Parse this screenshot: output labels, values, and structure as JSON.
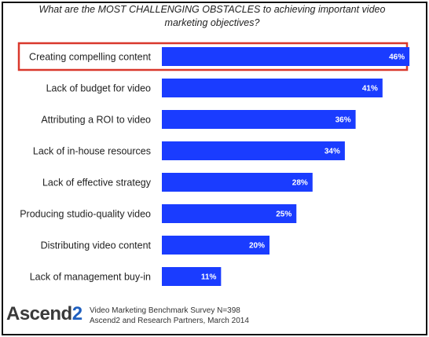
{
  "title": "What are the MOST CHALLENGING OBSTACLES to achieving important video marketing objectives?",
  "colors": {
    "bar": "#1a3cff",
    "highlight": "#d9382c",
    "text": "#222222"
  },
  "chart_data": {
    "type": "bar",
    "orientation": "horizontal",
    "title": "What are the MOST CHALLENGING OBSTACLES to achieving important video marketing objectives?",
    "categories": [
      "Creating compelling content",
      "Lack of budget for video",
      "Attributing a ROI to video",
      "Lack of in-house resources",
      "Lack of effective strategy",
      "Producing studio-quality video",
      "Distributing video content",
      "Lack of management buy-in"
    ],
    "values": [
      46,
      41,
      36,
      34,
      28,
      25,
      20,
      11
    ],
    "value_labels": [
      "46%",
      "41%",
      "36%",
      "34%",
      "28%",
      "25%",
      "20%",
      "11%"
    ],
    "highlighted_category": "Creating compelling content",
    "xlim": [
      0,
      50
    ],
    "grid": false,
    "legend": "none"
  },
  "footer": {
    "brand_text": "Ascend",
    "brand_num": "2",
    "source_line1": "Video Marketing Benchmark Survey N=398",
    "source_line2": "Ascend2 and Research Partners, March 2014"
  }
}
